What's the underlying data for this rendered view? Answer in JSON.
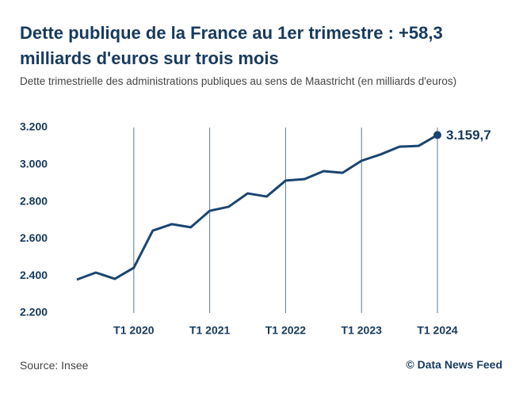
{
  "chart_data": {
    "type": "line",
    "title": "Dette publique de la France au 1er trimestre : +58,3 milliards d'euros sur trois mois",
    "subtitle": "Dette trimestrielle des administrations publiques au sens de Maastricht (en milliards d'euros)",
    "source": "Source: Insee",
    "credit": "© Data News Feed",
    "categories": [
      null,
      null,
      null,
      "T1 2020",
      null,
      null,
      null,
      "T1 2021",
      null,
      null,
      null,
      "T1 2022",
      null,
      null,
      null,
      "T1 2023",
      null,
      null,
      null,
      "T1 2024"
    ],
    "series": [
      {
        "name": "Dette publique",
        "color": "#1a4570",
        "values": [
          2380,
          2418,
          2384,
          2444,
          2644,
          2679,
          2662,
          2751,
          2773,
          2845,
          2828,
          2914,
          2922,
          2965,
          2956,
          3021,
          3055,
          3097,
          3101,
          3159.7
        ],
        "value_labels": [
          null,
          null,
          null,
          null,
          null,
          null,
          null,
          null,
          null,
          null,
          null,
          null,
          null,
          null,
          null,
          null,
          null,
          null,
          null,
          "3.159,7"
        ]
      }
    ],
    "ylim": [
      2200,
      3200
    ],
    "yticks": [
      {
        "value": 2200,
        "label": "2.200"
      },
      {
        "value": 2400,
        "label": "2.400"
      },
      {
        "value": 2600,
        "label": "2.600"
      },
      {
        "value": 2800,
        "label": "2.800"
      },
      {
        "value": 3000,
        "label": "3.000"
      },
      {
        "value": 3200,
        "label": "3.200"
      }
    ]
  }
}
